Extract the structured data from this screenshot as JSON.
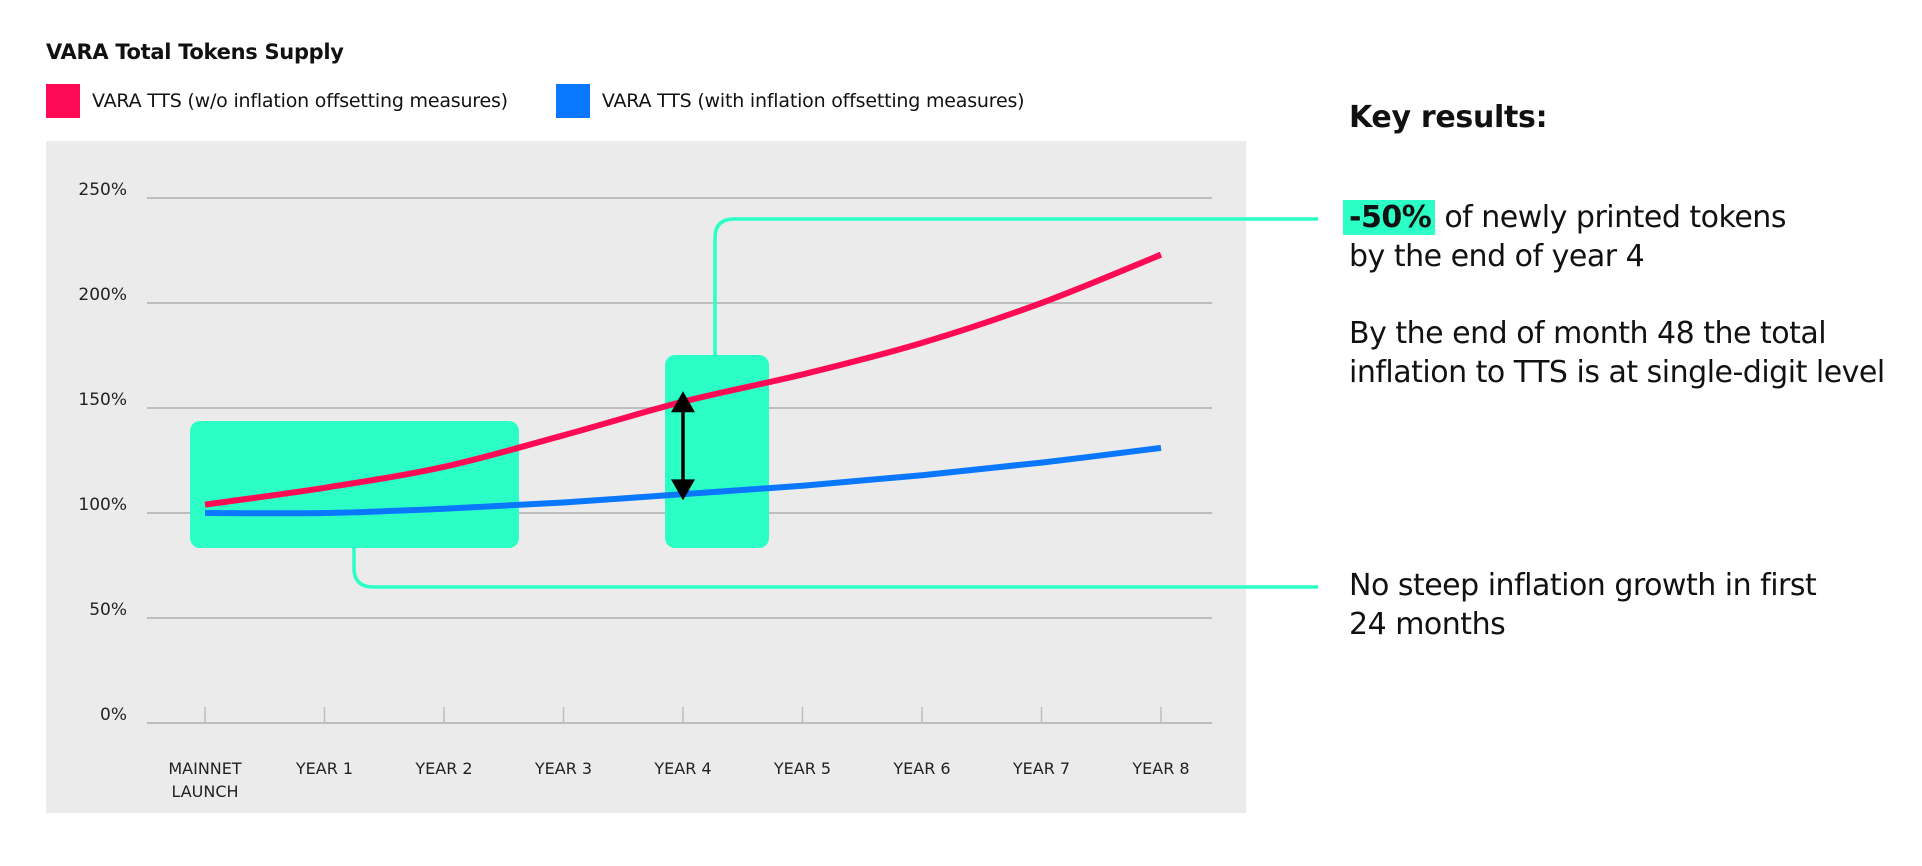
{
  "header": {
    "title": "VARA Total Tokens Supply"
  },
  "legend": [
    {
      "label": "VARA TTS (w/o inflation offsetting measures)",
      "color": "#ff0a54",
      "icon": "red-square"
    },
    {
      "label": "VARA TTS (with inflation offsetting measures)",
      "color": "#0a77ff",
      "icon": "blue-square"
    }
  ],
  "colors": {
    "panel_bg": "#ebebeb",
    "gridline": "#bdbdbd",
    "highlight": "#2bffc6",
    "red_series": "#ff0a54",
    "blue_series": "#0a77ff",
    "arrow": "#000000"
  },
  "key_results": {
    "title": "Key results:",
    "items": [
      {
        "highlight": "-50%",
        "text_line1": "of newly printed tokens",
        "text_line2": "by the end of year 4"
      },
      {
        "text_line1": "By the end of month 48 the total",
        "text_line2": "inflation to TTS is at single-digit level"
      },
      {
        "text_line1": "No steep inflation growth in first",
        "text_line2": "24 months"
      }
    ]
  },
  "chart_data": {
    "type": "line",
    "title": "VARA Total Tokens Supply",
    "xlabel": "",
    "ylabel": "",
    "categories": [
      "MAINNET LAUNCH",
      "YEAR 1",
      "YEAR 2",
      "YEAR 3",
      "YEAR 4",
      "YEAR 5",
      "YEAR 6",
      "YEAR 7",
      "YEAR 8"
    ],
    "category_lines": [
      [
        "MAINNET",
        "LAUNCH"
      ],
      [
        "YEAR 1"
      ],
      [
        "YEAR 2"
      ],
      [
        "YEAR 3"
      ],
      [
        "YEAR 4"
      ],
      [
        "YEAR 5"
      ],
      [
        "YEAR 6"
      ],
      [
        "YEAR 7"
      ],
      [
        "YEAR 8"
      ]
    ],
    "y_ticks": [
      "0%",
      "50%",
      "100%",
      "150%",
      "200%",
      "250%"
    ],
    "ylim": [
      0,
      250
    ],
    "grid": true,
    "legend_position": "top-left",
    "series": [
      {
        "name": "VARA TTS (w/o inflation offsetting measures)",
        "color": "#ff0a54",
        "values": [
          104,
          112,
          122,
          137,
          153,
          166,
          181,
          200,
          223
        ]
      },
      {
        "name": "VARA TTS (with inflation offsetting measures)",
        "color": "#0a77ff",
        "values": [
          100,
          100,
          102,
          105,
          109,
          113,
          118,
          124,
          131
        ]
      }
    ],
    "annotations": [
      {
        "type": "highlight-box",
        "x_range": [
          "MAINNET LAUNCH",
          "YEAR 2.6"
        ],
        "y_range": [
          85,
          145
        ],
        "note": "No steep inflation growth in first 24 months"
      },
      {
        "type": "highlight-box",
        "x_range": [
          "YEAR 3.85",
          "YEAR 4.7"
        ],
        "y_range": [
          85,
          175
        ],
        "note": "-50% of newly printed tokens by the end of year 4"
      },
      {
        "type": "double-arrow",
        "x": "YEAR 4",
        "from": 109,
        "to": 155
      }
    ]
  }
}
